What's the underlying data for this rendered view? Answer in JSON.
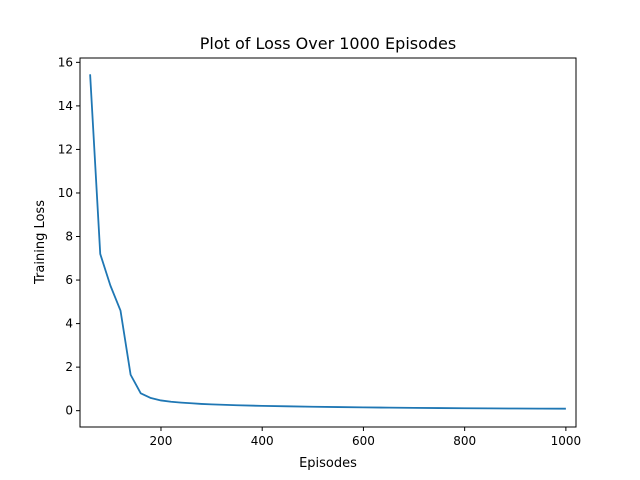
{
  "chart_data": {
    "type": "line",
    "title": "Plot of Loss Over 1000 Episodes",
    "xlabel": "Episodes",
    "ylabel": "Training Loss",
    "xlim": [
      40,
      1020
    ],
    "ylim": [
      -0.75,
      16.2
    ],
    "xticks": [
      200,
      400,
      600,
      800,
      1000
    ],
    "yticks": [
      0,
      2,
      4,
      6,
      8,
      10,
      12,
      14,
      16
    ],
    "grid": false,
    "series": [
      {
        "color": "#1f77b4",
        "x": [
          60,
          80,
          100,
          120,
          140,
          160,
          180,
          200,
          220,
          240,
          260,
          280,
          300,
          350,
          400,
          450,
          500,
          550,
          600,
          650,
          700,
          750,
          800,
          850,
          900,
          950,
          1000
        ],
        "y": [
          15.45,
          7.2,
          5.75,
          4.6,
          1.65,
          0.8,
          0.58,
          0.47,
          0.41,
          0.37,
          0.34,
          0.31,
          0.29,
          0.25,
          0.22,
          0.2,
          0.18,
          0.165,
          0.15,
          0.14,
          0.13,
          0.12,
          0.11,
          0.105,
          0.1,
          0.095,
          0.09
        ]
      }
    ]
  }
}
